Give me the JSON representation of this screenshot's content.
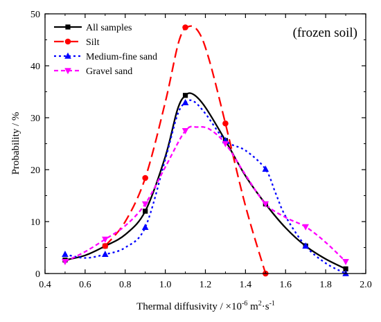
{
  "chart_data": {
    "type": "line",
    "annotation": "(frozen soil)",
    "xlabel": {
      "main": "Thermal diffusivity / ×10",
      "sup": "-6",
      "unit": " m",
      "unit_sup": "2",
      "tail": "·s",
      "tail_sup": "-1"
    },
    "ylabel": "Probability / %",
    "xlim": [
      0.4,
      2.0
    ],
    "ylim": [
      0,
      50
    ],
    "xticks": [
      "0.4",
      "0.6",
      "0.8",
      "1.0",
      "1.2",
      "1.4",
      "1.6",
      "1.8",
      "2.0"
    ],
    "yticks": [
      "0",
      "10",
      "20",
      "30",
      "40",
      "50"
    ],
    "legend_position": "top-left",
    "grid": false,
    "series": [
      {
        "name": "All samples",
        "color": "#000000",
        "marker": "square",
        "dash": "none",
        "points": [
          [
            0.5,
            2.6
          ],
          [
            0.7,
            5.3
          ],
          [
            0.9,
            12.0
          ],
          [
            1.1,
            34.3
          ],
          [
            1.3,
            25.6
          ],
          [
            1.5,
            13.4
          ],
          [
            1.7,
            5.3
          ],
          [
            1.9,
            0.9
          ]
        ],
        "curve": [
          [
            0.5,
            2.6
          ],
          [
            0.6,
            3.5
          ],
          [
            0.7,
            5.3
          ],
          [
            0.8,
            7.5
          ],
          [
            0.9,
            12.0
          ],
          [
            1.0,
            22.5
          ],
          [
            1.06,
            31.5
          ],
          [
            1.1,
            34.3
          ],
          [
            1.14,
            34.5
          ],
          [
            1.2,
            32.0
          ],
          [
            1.3,
            25.6
          ],
          [
            1.4,
            18.8
          ],
          [
            1.5,
            13.4
          ],
          [
            1.6,
            8.8
          ],
          [
            1.7,
            5.3
          ],
          [
            1.8,
            2.8
          ],
          [
            1.9,
            0.9
          ]
        ]
      },
      {
        "name": "Silt",
        "color": "#ff0000",
        "marker": "circle",
        "dash": "14,7",
        "points": [
          [
            0.7,
            5.3
          ],
          [
            0.9,
            18.4
          ],
          [
            1.1,
            47.4
          ],
          [
            1.3,
            28.9
          ],
          [
            1.5,
            0.0
          ]
        ],
        "curve": [
          [
            0.7,
            5.3
          ],
          [
            0.8,
            10.0
          ],
          [
            0.9,
            18.4
          ],
          [
            1.0,
            33.0
          ],
          [
            1.07,
            45.0
          ],
          [
            1.12,
            47.6
          ],
          [
            1.17,
            46.3
          ],
          [
            1.22,
            41.0
          ],
          [
            1.3,
            28.9
          ],
          [
            1.4,
            13.0
          ],
          [
            1.5,
            0.0
          ]
        ]
      },
      {
        "name": "Medium-fine sand",
        "color": "#0000ff",
        "marker": "triangle-up",
        "dash": "3,4",
        "points": [
          [
            0.5,
            3.7
          ],
          [
            0.7,
            3.7
          ],
          [
            0.9,
            8.9
          ],
          [
            1.1,
            32.9
          ],
          [
            1.3,
            25.6
          ],
          [
            1.5,
            20.1
          ],
          [
            1.7,
            5.3
          ],
          [
            1.9,
            0.0
          ]
        ],
        "curve": [
          [
            0.5,
            3.7
          ],
          [
            0.6,
            3.0
          ],
          [
            0.7,
            3.7
          ],
          [
            0.8,
            5.0
          ],
          [
            0.9,
            8.9
          ],
          [
            1.0,
            22.0
          ],
          [
            1.06,
            30.5
          ],
          [
            1.1,
            32.9
          ],
          [
            1.14,
            33.2
          ],
          [
            1.2,
            30.8
          ],
          [
            1.3,
            25.6
          ],
          [
            1.4,
            23.7
          ],
          [
            1.5,
            20.1
          ],
          [
            1.55,
            15.5
          ],
          [
            1.6,
            11.0
          ],
          [
            1.7,
            5.3
          ],
          [
            1.8,
            2.0
          ],
          [
            1.9,
            0.0
          ]
        ]
      },
      {
        "name": "Gravel sand",
        "color": "#ff00ff",
        "marker": "triangle-down",
        "dash": "6,4",
        "points": [
          [
            0.5,
            2.3
          ],
          [
            0.7,
            6.6
          ],
          [
            0.9,
            13.4
          ],
          [
            1.1,
            27.5
          ],
          [
            1.3,
            25.0
          ],
          [
            1.5,
            13.4
          ],
          [
            1.7,
            9.0
          ],
          [
            1.9,
            2.3
          ]
        ],
        "curve": [
          [
            0.5,
            2.3
          ],
          [
            0.6,
            4.2
          ],
          [
            0.7,
            6.6
          ],
          [
            0.8,
            9.2
          ],
          [
            0.9,
            13.4
          ],
          [
            1.0,
            20.5
          ],
          [
            1.1,
            27.5
          ],
          [
            1.16,
            28.2
          ],
          [
            1.22,
            27.8
          ],
          [
            1.3,
            25.0
          ],
          [
            1.4,
            19.0
          ],
          [
            1.5,
            13.4
          ],
          [
            1.6,
            10.8
          ],
          [
            1.7,
            9.0
          ],
          [
            1.8,
            6.0
          ],
          [
            1.9,
            2.3
          ]
        ]
      }
    ]
  }
}
